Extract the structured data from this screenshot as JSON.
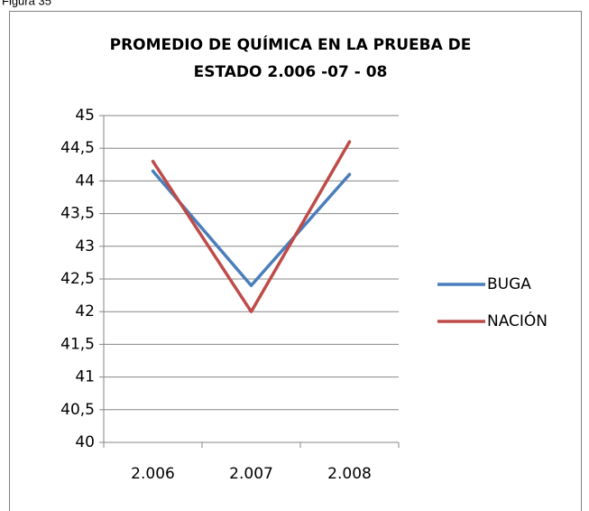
{
  "caption": "Figura 35",
  "chart_data": {
    "type": "line",
    "title": [
      "PROMEDIO DE QUÍMICA EN LA PRUEBA DE",
      "ESTADO 2.006 -07 - 08"
    ],
    "categories": [
      "2.006",
      "2.007",
      "2.008"
    ],
    "series": [
      {
        "name": "BUGA",
        "color": "#4a7ebb",
        "values": [
          44.15,
          42.4,
          44.1
        ]
      },
      {
        "name": "NACIÓN",
        "color": "#be4b48",
        "values": [
          44.3,
          42.0,
          44.6
        ]
      }
    ],
    "ylim": [
      40,
      45
    ],
    "yticks": [
      40,
      {
        "value": 40.5,
        "label": "40,5"
      },
      41,
      {
        "value": 41.5,
        "label": "41,5"
      },
      42,
      {
        "value": 42.5,
        "label": "42,5"
      },
      43,
      {
        "value": 43.5,
        "label": "43,5"
      },
      44,
      {
        "value": 44.5,
        "label": "44,5"
      },
      45
    ],
    "grid": true,
    "legend": "right"
  }
}
